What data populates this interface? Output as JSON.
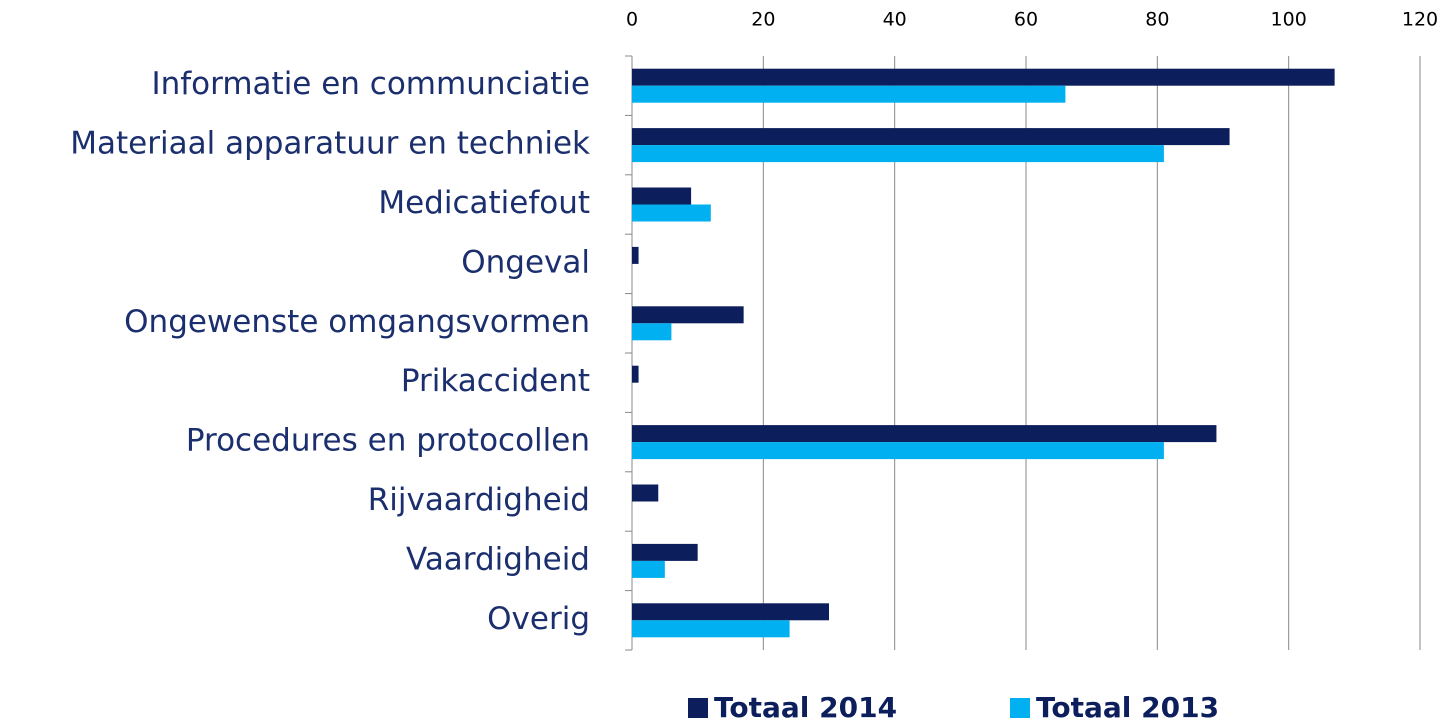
{
  "chart_data": {
    "type": "hbar",
    "categories": [
      "Informatie en communciatie",
      "Materiaal apparatuur en techniek",
      "Medicatiefout",
      "Ongeval",
      "Ongewenste omgangsvormen",
      "Prikaccident",
      "Procedures en protocollen",
      "Rijvaardigheid",
      "Vaardigheid",
      "Overig"
    ],
    "series": [
      {
        "name": "Totaal 2014",
        "color": "#0c1e5b",
        "values": [
          107,
          91,
          9,
          1,
          17,
          1,
          89,
          4,
          10,
          30
        ]
      },
      {
        "name": "Totaal 2013",
        "color": "#00b0f0",
        "values": [
          66,
          81,
          12,
          0,
          6,
          0,
          81,
          0,
          5,
          24
        ]
      }
    ],
    "xlim": [
      0,
      120
    ],
    "xticks": [
      0,
      20,
      40,
      60,
      80,
      100,
      120
    ],
    "grid": true
  }
}
